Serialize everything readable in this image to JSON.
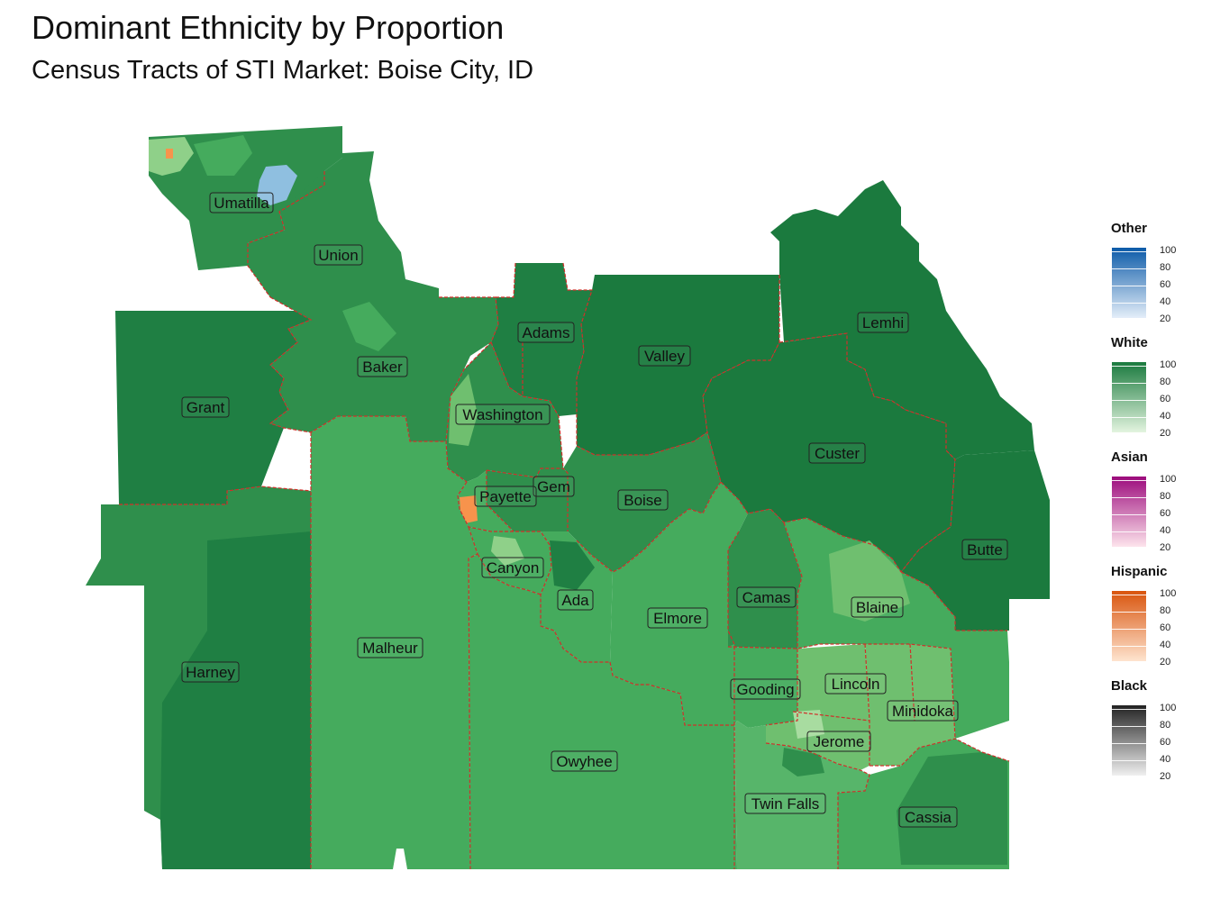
{
  "title": "Dominant Ethnicity by Proportion",
  "subtitle": "Census Tracts of STI Market: Boise City, ID",
  "counties": [
    {
      "name": "Umatilla"
    },
    {
      "name": "Union"
    },
    {
      "name": "Adams"
    },
    {
      "name": "Lemhi"
    },
    {
      "name": "Baker"
    },
    {
      "name": "Valley"
    },
    {
      "name": "Grant"
    },
    {
      "name": "Washington"
    },
    {
      "name": "Custer"
    },
    {
      "name": "Gem"
    },
    {
      "name": "Payette"
    },
    {
      "name": "Boise"
    },
    {
      "name": "Butte"
    },
    {
      "name": "Canyon"
    },
    {
      "name": "Camas"
    },
    {
      "name": "Ada"
    },
    {
      "name": "Blaine"
    },
    {
      "name": "Elmore"
    },
    {
      "name": "Malheur"
    },
    {
      "name": "Harney"
    },
    {
      "name": "Gooding"
    },
    {
      "name": "Lincoln"
    },
    {
      "name": "Minidoka"
    },
    {
      "name": "Jerome"
    },
    {
      "name": "Owyhee"
    },
    {
      "name": "Twin Falls"
    },
    {
      "name": "Cassia"
    }
  ],
  "legend": [
    {
      "title": "Other",
      "color_low": "#e4eef9",
      "color_high": "#0b5aa8",
      "ticks": [
        "100",
        "80",
        "60",
        "40",
        "20"
      ]
    },
    {
      "title": "White",
      "color_low": "#e3f4df",
      "color_high": "#1a7a3e",
      "ticks": [
        "100",
        "80",
        "60",
        "40",
        "20"
      ]
    },
    {
      "title": "Asian",
      "color_low": "#fde4ec",
      "color_high": "#9c0a7c",
      "ticks": [
        "100",
        "80",
        "60",
        "40",
        "20"
      ]
    },
    {
      "title": "Hispanic",
      "color_low": "#fee4cf",
      "color_high": "#d9540d",
      "ticks": [
        "100",
        "80",
        "60",
        "40",
        "20"
      ]
    },
    {
      "title": "Black",
      "color_low": "#f0f0f0",
      "color_high": "#222222",
      "ticks": [
        "100",
        "80",
        "60",
        "40",
        "20"
      ]
    }
  ],
  "colors": {
    "boundary": "#d0302a",
    "white_dark": "#1a7a3e",
    "white_mid": "#2f8f4c",
    "white_light": "#45ab5d",
    "white_pale": "#8fd089",
    "other_light": "#8fbfe0",
    "hispanic_light": "#f7934c"
  }
}
